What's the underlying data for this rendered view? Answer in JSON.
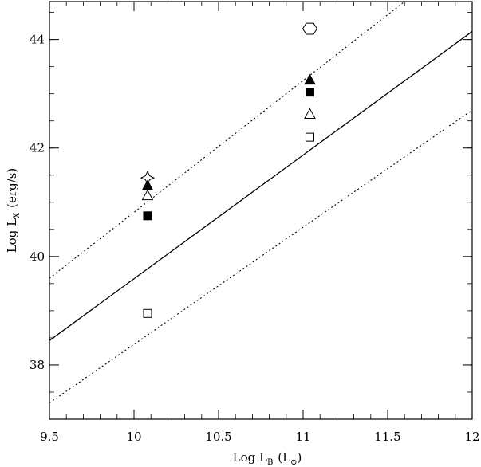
{
  "chart_data": {
    "type": "scatter",
    "title": "",
    "xlabel": {
      "main": "Log L",
      "sub": "B",
      "unit_open": "(L",
      "unit_sub": "⊙",
      "unit_close": ")"
    },
    "ylabel": {
      "main": "Log L",
      "sub": "X",
      "unit": "(erg/s)"
    },
    "xlim": [
      9.5,
      12.0
    ],
    "ylim": [
      37.0,
      44.7
    ],
    "xticks": [
      "9.5",
      "10",
      "10.5",
      "11",
      "11.5",
      "12"
    ],
    "yticks": [
      "38",
      "40",
      "42",
      "44"
    ],
    "grid": false,
    "lines": [
      {
        "style": "solid",
        "x": [
          9.5,
          12.0
        ],
        "y": [
          38.45,
          44.15
        ]
      },
      {
        "style": "dotted",
        "x": [
          9.5,
          11.6
        ],
        "y": [
          39.6,
          44.7
        ]
      },
      {
        "style": "dotted",
        "x": [
          9.5,
          12.0
        ],
        "y": [
          37.3,
          42.7
        ]
      }
    ],
    "points": [
      {
        "x": 10.08,
        "y": 41.45,
        "marker": "open-star"
      },
      {
        "x": 10.08,
        "y": 41.3,
        "marker": "filled-triangle"
      },
      {
        "x": 10.08,
        "y": 41.12,
        "marker": "open-triangle"
      },
      {
        "x": 10.08,
        "y": 40.75,
        "marker": "filled-square"
      },
      {
        "x": 10.08,
        "y": 38.95,
        "marker": "open-square"
      },
      {
        "x": 11.04,
        "y": 44.2,
        "marker": "open-hexagon"
      },
      {
        "x": 11.04,
        "y": 43.25,
        "marker": "filled-triangle"
      },
      {
        "x": 11.04,
        "y": 43.03,
        "marker": "filled-square"
      },
      {
        "x": 11.04,
        "y": 42.62,
        "marker": "open-triangle"
      },
      {
        "x": 11.04,
        "y": 42.2,
        "marker": "open-square"
      }
    ]
  }
}
